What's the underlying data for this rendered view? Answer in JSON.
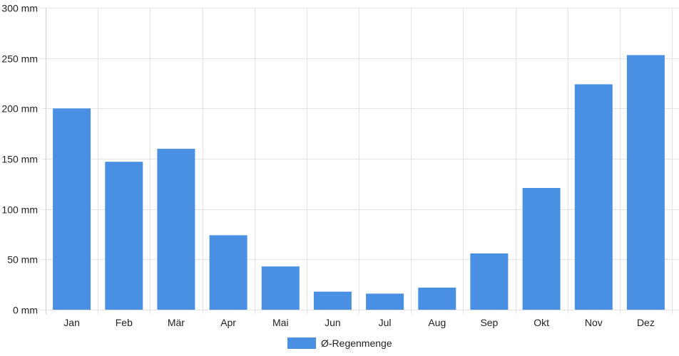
{
  "chart_data": {
    "type": "bar",
    "title": "",
    "xlabel": "",
    "ylabel": "",
    "categories": [
      "Jan",
      "Feb",
      "Mär",
      "Apr",
      "Mai",
      "Jun",
      "Jul",
      "Aug",
      "Sep",
      "Okt",
      "Nov",
      "Dez"
    ],
    "series": [
      {
        "name": "Ø-Regenmenge",
        "color": "#4a90e2",
        "values": [
          200,
          147,
          160,
          74,
          43,
          18,
          16,
          22,
          56,
          121,
          224,
          253
        ]
      }
    ],
    "ylim": [
      0,
      300
    ],
    "y_ticks": [
      0,
      50,
      100,
      150,
      200,
      250,
      300
    ],
    "y_unit_suffix": " mm",
    "grid": true,
    "legend_position": "bottom"
  }
}
